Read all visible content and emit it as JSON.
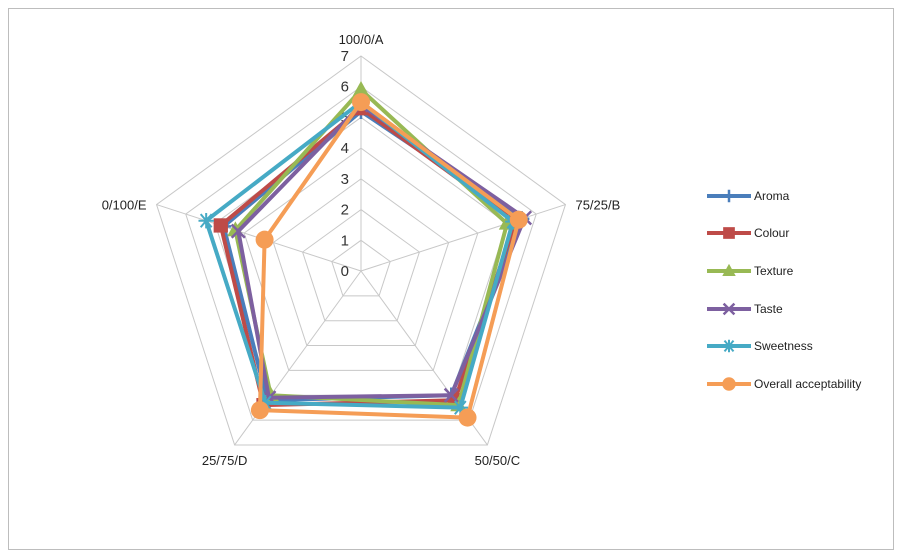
{
  "chart_data": {
    "type": "radar",
    "title": "",
    "categories": [
      "100/0/A",
      "75/25/B",
      "50/50/C",
      "25/75/D",
      "0/100/E"
    ],
    "rlim": [
      0,
      7
    ],
    "ticks": [
      0,
      1,
      2,
      3,
      4,
      5,
      6,
      7
    ],
    "grid": true,
    "legend_position": "right",
    "series": [
      {
        "name": "Aroma",
        "values": [
          5.2,
          5.5,
          5.0,
          5.2,
          4.7
        ],
        "color": "#4a7ebb",
        "marker": "plus"
      },
      {
        "name": "Colour",
        "values": [
          5.3,
          5.3,
          5.2,
          5.4,
          4.8
        ],
        "color": "#be4b48",
        "marker": "square"
      },
      {
        "name": "Texture",
        "values": [
          5.9,
          5.0,
          5.4,
          5.0,
          4.3
        ],
        "color": "#98b954",
        "marker": "triangle"
      },
      {
        "name": "Taste",
        "values": [
          5.4,
          5.6,
          5.0,
          5.1,
          4.2
        ],
        "color": "#7d60a0",
        "marker": "x"
      },
      {
        "name": "Sweetness",
        "values": [
          5.5,
          5.2,
          5.5,
          5.3,
          5.3
        ],
        "color": "#46aac5",
        "marker": "star"
      },
      {
        "name": "Overall acceptability",
        "values": [
          5.5,
          5.4,
          5.9,
          5.6,
          3.3
        ],
        "color": "#f59d56",
        "marker": "circle"
      }
    ]
  }
}
